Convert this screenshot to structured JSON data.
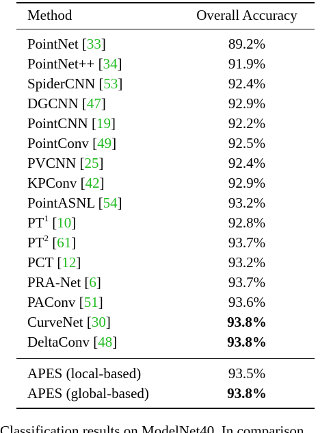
{
  "table": {
    "headers": [
      "Method",
      "Overall Accuracy"
    ],
    "rows": [
      {
        "name": "PointNet",
        "sup": "",
        "cite": "33",
        "acc": "89.2%",
        "bold": false
      },
      {
        "name": "PointNet++",
        "sup": "",
        "cite": "34",
        "acc": "91.9%",
        "bold": false
      },
      {
        "name": "SpiderCNN",
        "sup": "",
        "cite": "53",
        "acc": "92.4%",
        "bold": false
      },
      {
        "name": "DGCNN",
        "sup": "",
        "cite": "47",
        "acc": "92.9%",
        "bold": false
      },
      {
        "name": "PointCNN",
        "sup": "",
        "cite": "19",
        "acc": "92.2%",
        "bold": false
      },
      {
        "name": "PointConv",
        "sup": "",
        "cite": "49",
        "acc": "92.5%",
        "bold": false
      },
      {
        "name": "PVCNN",
        "sup": "",
        "cite": "25",
        "acc": "92.4%",
        "bold": false
      },
      {
        "name": "KPConv",
        "sup": "",
        "cite": "42",
        "acc": "92.9%",
        "bold": false
      },
      {
        "name": "PointASNL",
        "sup": "",
        "cite": "54",
        "acc": "93.2%",
        "bold": false
      },
      {
        "name": "PT",
        "sup": "1",
        "cite": "10",
        "acc": "92.8%",
        "bold": false
      },
      {
        "name": "PT",
        "sup": "2",
        "cite": "61",
        "acc": "93.7%",
        "bold": false
      },
      {
        "name": "PCT",
        "sup": "",
        "cite": "12",
        "acc": "93.2%",
        "bold": false
      },
      {
        "name": "PRA-Net",
        "sup": "",
        "cite": "6",
        "acc": "93.7%",
        "bold": false
      },
      {
        "name": "PAConv",
        "sup": "",
        "cite": "51",
        "acc": "93.6%",
        "bold": false
      },
      {
        "name": "CurveNet",
        "sup": "",
        "cite": "30",
        "acc": "93.8%",
        "bold": true
      },
      {
        "name": "DeltaConv",
        "sup": "",
        "cite": "48",
        "acc": "93.8%",
        "bold": true
      }
    ],
    "ours": [
      {
        "name": "APES (local-based)",
        "acc": "93.5%",
        "bold": false
      },
      {
        "name": "APES (global-based)",
        "acc": "93.8%",
        "bold": true
      }
    ]
  },
  "caption": "Classification results on ModelNet40. In comparison"
}
